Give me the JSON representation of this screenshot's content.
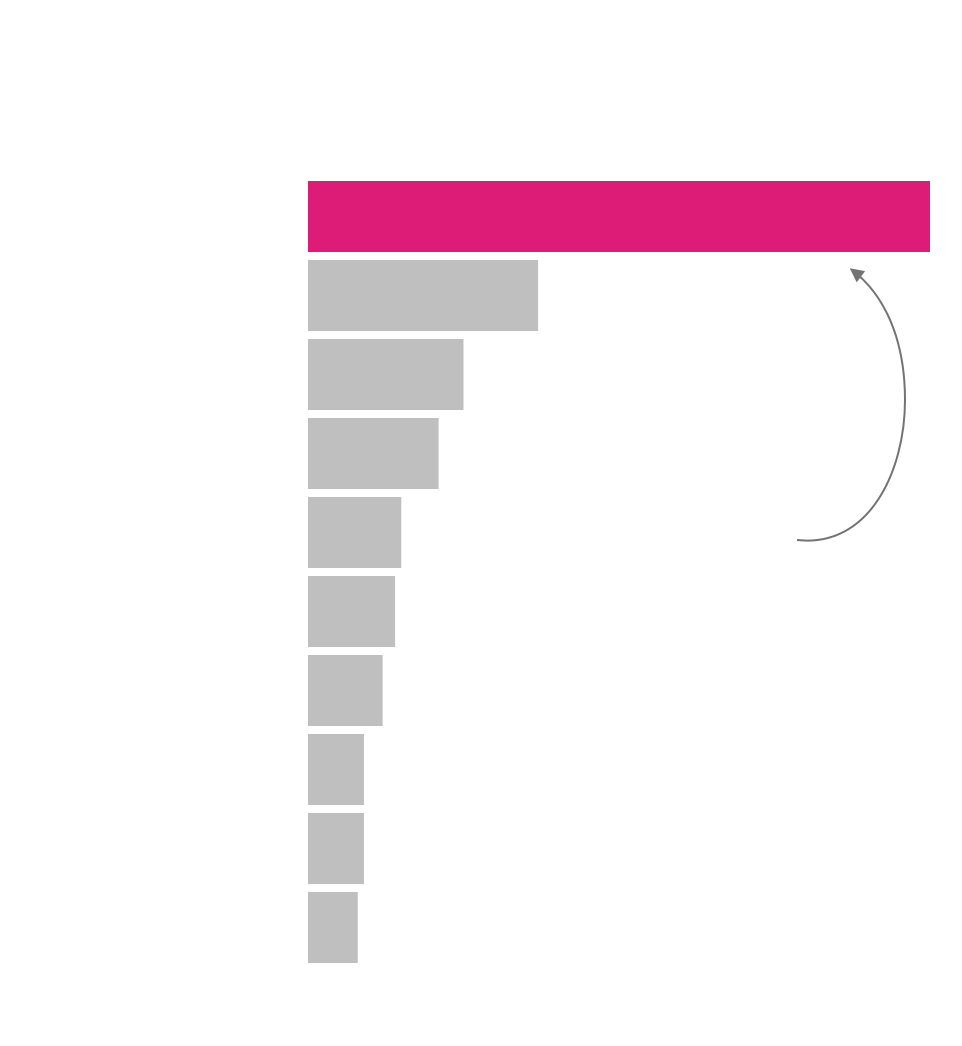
{
  "chart_data": {
    "type": "barh",
    "categories": [
      null,
      null,
      null,
      null,
      null,
      null,
      null,
      null,
      null,
      null
    ],
    "values": [
      100,
      37,
      25,
      21,
      15,
      14,
      12,
      9,
      9,
      8
    ],
    "colors": [
      "#dd1c77",
      "#bfbfbf",
      "#bfbfbf",
      "#bfbfbf",
      "#bfbfbf",
      "#bfbfbf",
      "#bfbfbf",
      "#bfbfbf",
      "#bfbfbf",
      "#bfbfbf"
    ],
    "xlim": [
      0,
      100
    ]
  }
}
